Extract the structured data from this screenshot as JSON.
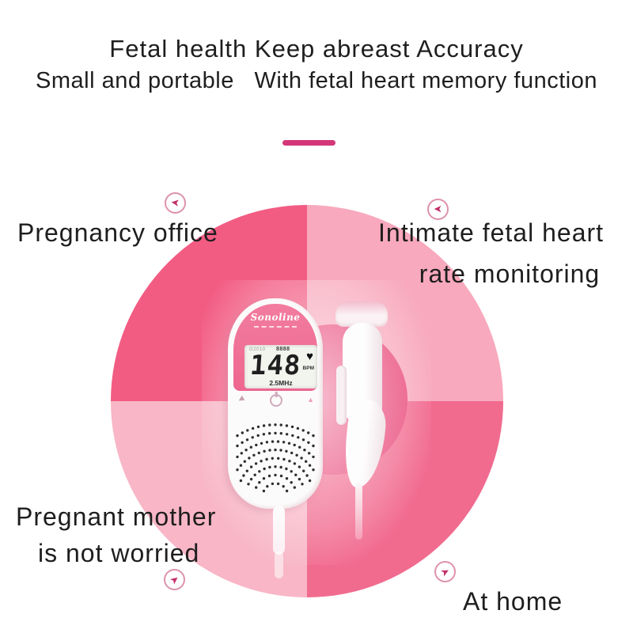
{
  "header": {
    "line1": "Fetal health Keep abreast Accuracy",
    "line2": "Small and portable   With fetal heart memory function"
  },
  "divider": {
    "color": "#d33679"
  },
  "feature_labels": {
    "pregnancy_office": "Pregnancy office",
    "intimate_line1": "Intimate fetal heart",
    "intimate_line2": "rate monitoring",
    "mother_line1": "Pregnant mother",
    "mother_line2": "is not worried",
    "at_home": "At home"
  },
  "wheel": {
    "colors": {
      "top_left": "#f25c83",
      "top_right": "#f8a9bd",
      "bottom_left": "#f8b6c6",
      "bottom_right": "#f16b8f",
      "inner_accent": "#e9497b"
    }
  },
  "device": {
    "brand_logo": "Sonoline",
    "lcd": {
      "code_left": "G2010",
      "code_right": "8888",
      "bpm_value": "148",
      "bpm_unit": "BPM",
      "heart_icon": "♥",
      "frequency": "2.5MHz"
    },
    "controls": {
      "down_glyph": "◀",
      "up_glyph": "▲"
    }
  },
  "icons": {
    "arrow_glyph": "➤"
  }
}
